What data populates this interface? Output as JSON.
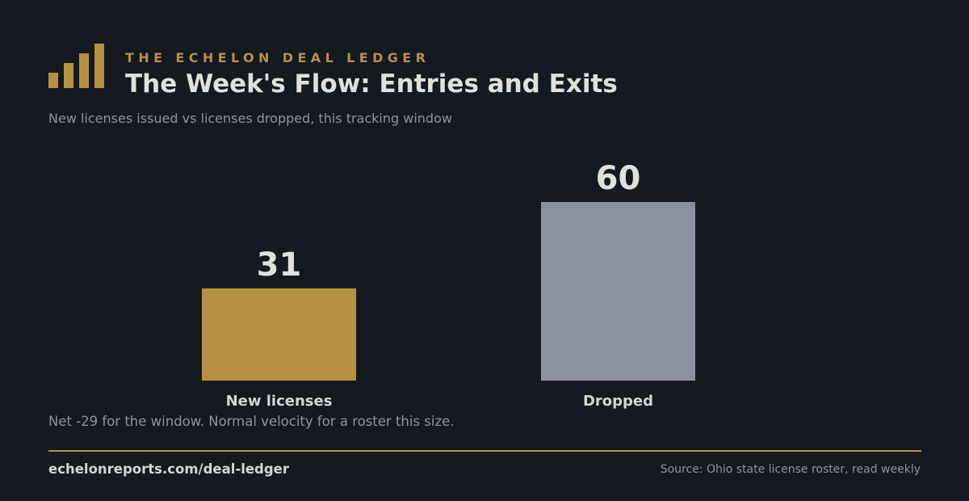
{
  "header": {
    "kicker": "THE ECHELON DEAL LEDGER",
    "title": "The Week's Flow: Entries and Exits",
    "subtitle": "New licenses issued vs licenses dropped, this tracking window",
    "logo_icon": "bar-chart-logo-icon"
  },
  "chart_data": {
    "type": "bar",
    "title": "The Week's Flow: Entries and Exits",
    "subtitle": "New licenses issued vs licenses dropped, this tracking window",
    "categories": [
      "New licenses",
      "Dropped"
    ],
    "values": [
      31,
      60
    ],
    "colors": [
      "#b69141",
      "#8b919e"
    ],
    "ylim": [
      0,
      60
    ],
    "xlabel": "",
    "ylabel": "",
    "grid": false,
    "legend": "none"
  },
  "note": "Net -29 for the window. Normal velocity for a roster this size.",
  "footer": {
    "url": "echelonreports.com/deal-ledger",
    "source": "Source: Ohio state license roster, read weekly"
  },
  "colors": {
    "background": "#151920",
    "accent": "#b69141",
    "bar_secondary": "#8b919e",
    "text_primary": "#e2e0da",
    "text_muted": "#8f939b"
  }
}
